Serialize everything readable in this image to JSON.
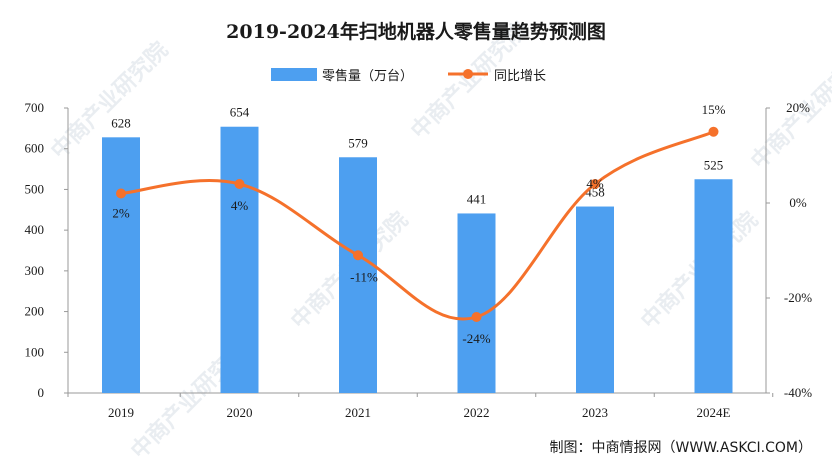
{
  "chart_data": {
    "type": "bar",
    "title": "2019-2024年扫地机器人零售量趋势预测图",
    "categories": [
      "2019",
      "2020",
      "2021",
      "2022",
      "2023",
      "2024E"
    ],
    "series": [
      {
        "name": "零售量（万台）",
        "type": "bar",
        "axis": "left",
        "values": [
          628,
          654,
          579,
          441,
          458,
          525
        ],
        "labels": [
          "628",
          "654",
          "579",
          "441",
          "458",
          "525"
        ],
        "color": "#4d9ff0"
      },
      {
        "name": "同比增长",
        "type": "line",
        "axis": "right",
        "values": [
          2,
          4,
          -11,
          -24,
          4,
          15
        ],
        "labels": [
          "2%",
          "4%",
          "-11%",
          "-24%",
          "4%",
          "15%"
        ],
        "color": "#f5712b"
      }
    ],
    "left_axis": {
      "ylim": [
        0,
        700
      ],
      "ticks": [
        "0",
        "100",
        "200",
        "300",
        "400",
        "500",
        "600",
        "700"
      ]
    },
    "right_axis": {
      "ylim": [
        -40,
        20
      ],
      "ticks": [
        "20%",
        "0%",
        "-20%",
        "-40%"
      ]
    },
    "legend": "top-center",
    "grid": false
  },
  "source": "制图：中商情报网（WWW.ASKCI.COM）",
  "watermark": "中商产业研究院"
}
